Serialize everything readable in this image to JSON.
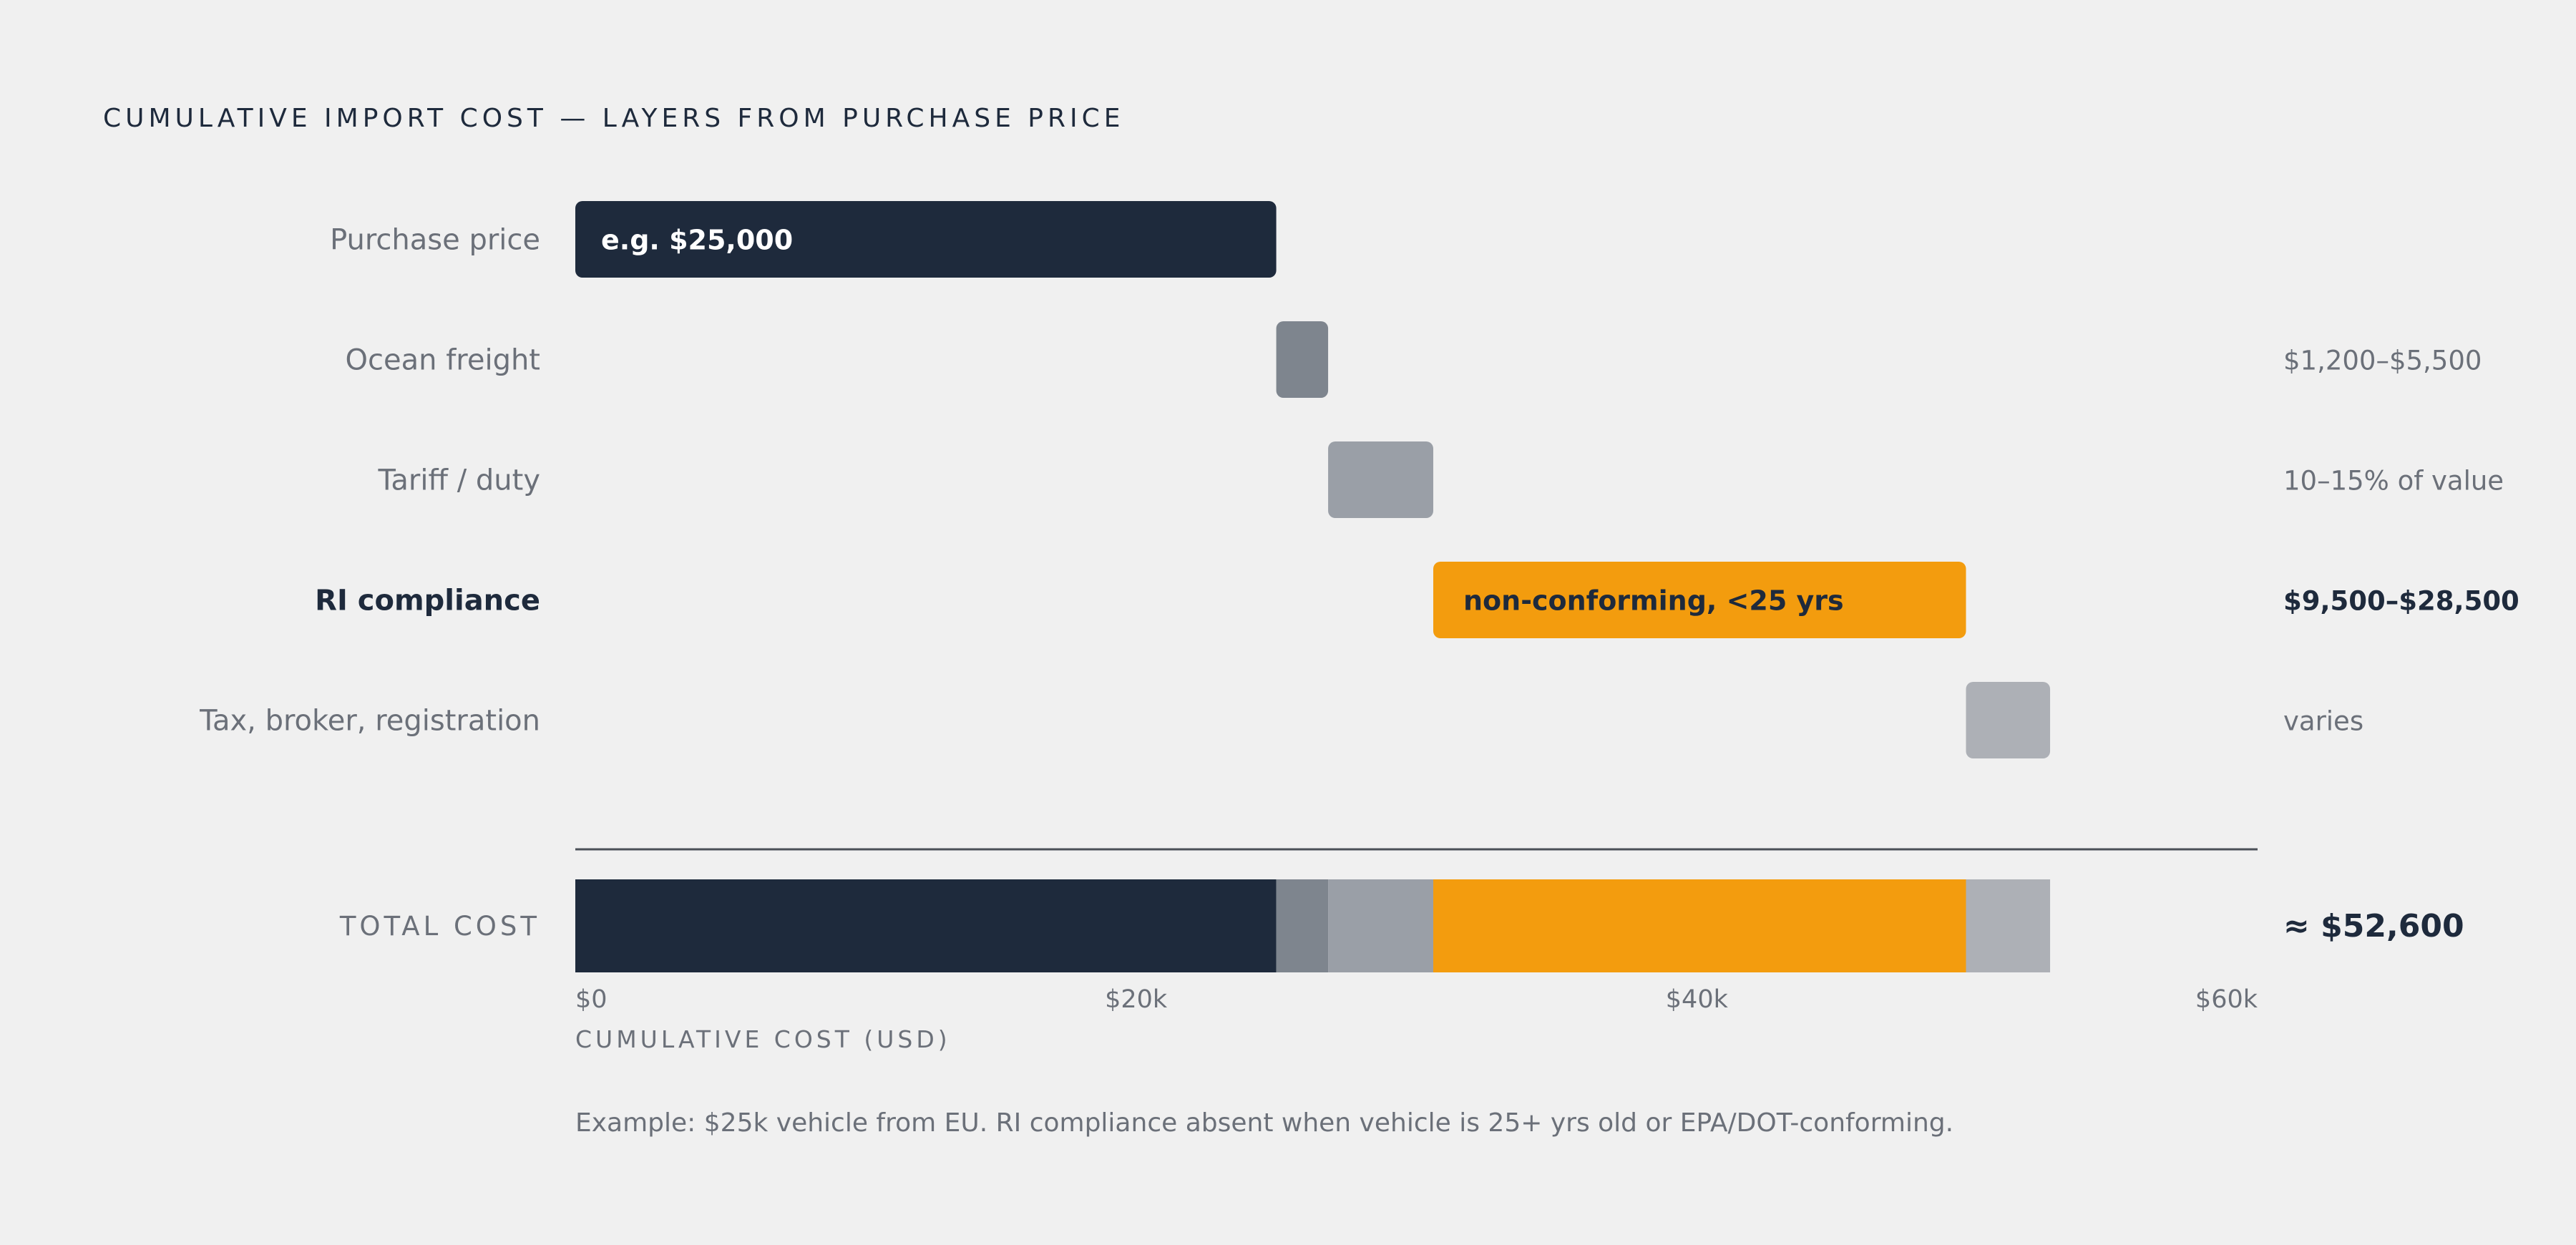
{
  "title": "CUMULATIVE IMPORT COST — LAYERS FROM PURCHASE PRICE",
  "note": "Example: $25k vehicle from EU. RI compliance absent when vehicle is 25+ yrs old or EPA/DOT-conforming.",
  "colors": {
    "background": "#f0f0f0",
    "dark": "#1e2a3c",
    "freight": "#7e858e",
    "tariff": "#9a9fa7",
    "accent": "#f39c0e",
    "tax": "#adb0b6",
    "muted_text": "#6b7079"
  },
  "chart_data": {
    "type": "bar",
    "subtype": "waterfall",
    "xlabel": "CUMULATIVE COST (USD)",
    "xlim": [
      0,
      60000
    ],
    "x_ticks": [
      {
        "value": 0,
        "label": "$0"
      },
      {
        "value": 20000,
        "label": "$20k"
      },
      {
        "value": 40000,
        "label": "$40k"
      },
      {
        "value": 60000,
        "label": "$60k"
      }
    ],
    "layers": [
      {
        "name": "Purchase price",
        "start": 0,
        "end": 25000,
        "inner_label": "e.g. $25,000",
        "range_label": "",
        "color": "#1e2a3c",
        "emphasis": false
      },
      {
        "name": "Ocean freight",
        "start": 25000,
        "end": 26850,
        "inner_label": "",
        "range_label": "$1,200–$5,500",
        "color": "#7e858e",
        "emphasis": false
      },
      {
        "name": "Tariff / duty",
        "start": 26850,
        "end": 30600,
        "inner_label": "",
        "range_label": "10–15% of value",
        "color": "#9a9fa7",
        "emphasis": false
      },
      {
        "name": "RI compliance",
        "start": 30600,
        "end": 49600,
        "inner_label": "non-conforming, <25 yrs",
        "range_label": "$9,500–$28,500",
        "color": "#f39c0e",
        "emphasis": true
      },
      {
        "name": "Tax, broker, registration",
        "start": 49600,
        "end": 52600,
        "inner_label": "",
        "range_label": "varies",
        "color": "#adb0b6",
        "emphasis": false
      }
    ],
    "total": {
      "label": "TOTAL COST",
      "value": 52600,
      "value_label": "≈ $52,600"
    }
  }
}
